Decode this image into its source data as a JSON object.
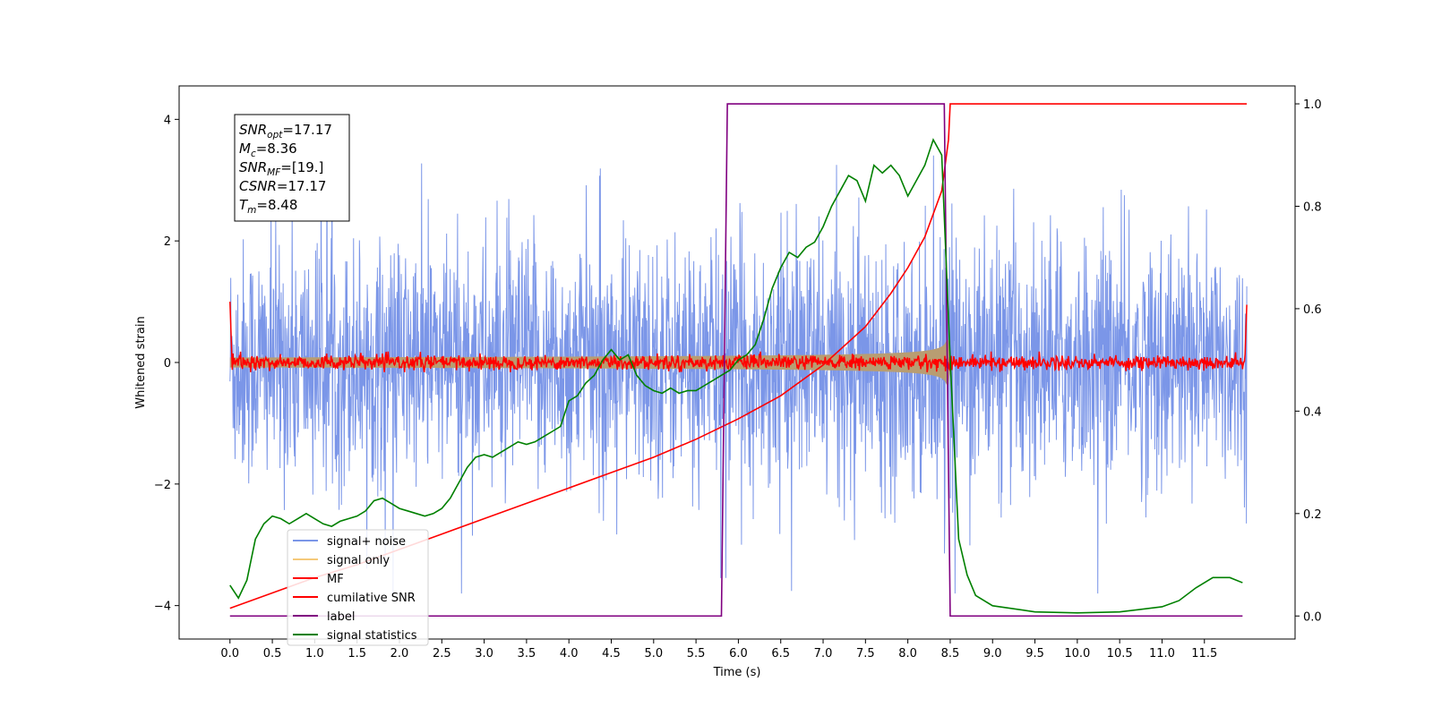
{
  "chart_data": {
    "type": "line",
    "xlabel": "Time (s)",
    "ylabel": "Whitened strain",
    "xlim": [
      -0.6,
      12.57
    ],
    "ylim": [
      -4.55,
      4.55
    ],
    "y2lim": [
      -0.045,
      1.035
    ],
    "x_ticks": [
      "0.0",
      "0.5",
      "1.0",
      "1.5",
      "2.0",
      "2.5",
      "3.0",
      "3.5",
      "4.0",
      "4.5",
      "5.0",
      "5.5",
      "6.0",
      "6.5",
      "7.0",
      "7.5",
      "8.0",
      "8.5",
      "9.0",
      "9.5",
      "10.0",
      "10.5",
      "11.0",
      "11.5"
    ],
    "y_ticks": [
      "4",
      "2",
      "0",
      "−2",
      "−4"
    ],
    "y2_ticks": [
      "1.0",
      "0.8",
      "0.6",
      "0.4",
      "0.2",
      "0.0"
    ],
    "legend_position": "lower-left",
    "info_box": {
      "lines": [
        {
          "sym": "SNR",
          "sub": "opt",
          "val": "=17.17"
        },
        {
          "sym": "M",
          "sub": "c",
          "val": "=8.36"
        },
        {
          "sym": "SNR",
          "sub": "MF",
          "val": "=[19.]"
        },
        {
          "sym": "CSNR",
          "sub": "",
          "val": "=17.17"
        },
        {
          "sym": "T",
          "sub": "m",
          "val": "=8.48"
        }
      ]
    },
    "series": [
      {
        "name": "signal+ noise",
        "color": "#7b96e8",
        "axis": "left",
        "kind": "noise",
        "amplitude": 1.0,
        "x_range": [
          0.0,
          12.0
        ]
      },
      {
        "name": "signal only",
        "color": "#f5c97a",
        "axis": "left",
        "kind": "chirp",
        "merger_time": 8.48,
        "peak_amplitude": 1.1
      },
      {
        "name": "MF",
        "color": "#ff0000",
        "axis": "left",
        "kind": "mf",
        "amplitude": 0.06,
        "edge_values": [
          1.0,
          0.95
        ]
      },
      {
        "name": "cumilative SNR",
        "color": "#ff0000",
        "axis": "right",
        "x": [
          0.0,
          0.5,
          1.0,
          1.5,
          2.0,
          2.5,
          3.0,
          3.5,
          4.0,
          4.5,
          5.0,
          5.5,
          6.0,
          6.5,
          7.0,
          7.5,
          7.8,
          8.0,
          8.2,
          8.4,
          8.48,
          8.5,
          12.0
        ],
        "y": [
          0.015,
          0.045,
          0.075,
          0.1,
          0.13,
          0.16,
          0.19,
          0.22,
          0.25,
          0.28,
          0.31,
          0.345,
          0.385,
          0.43,
          0.49,
          0.565,
          0.63,
          0.68,
          0.74,
          0.83,
          0.93,
          1.0,
          1.0
        ]
      },
      {
        "name": "label",
        "color": "#800080",
        "axis": "right",
        "x": [
          0.0,
          5.8,
          5.87,
          8.43,
          8.5,
          11.95
        ],
        "y": [
          0.0,
          0.0,
          1.0,
          1.0,
          0.0,
          0.0
        ]
      },
      {
        "name": "signal statistics",
        "color": "#008000",
        "axis": "right",
        "x": [
          0.0,
          0.1,
          0.2,
          0.3,
          0.4,
          0.5,
          0.6,
          0.7,
          0.8,
          0.9,
          1.0,
          1.1,
          1.2,
          1.3,
          1.4,
          1.5,
          1.6,
          1.7,
          1.8,
          1.9,
          2.0,
          2.1,
          2.2,
          2.3,
          2.4,
          2.5,
          2.6,
          2.7,
          2.8,
          2.9,
          3.0,
          3.1,
          3.2,
          3.3,
          3.4,
          3.5,
          3.6,
          3.7,
          3.8,
          3.9,
          4.0,
          4.1,
          4.2,
          4.3,
          4.4,
          4.5,
          4.6,
          4.7,
          4.8,
          4.9,
          5.0,
          5.1,
          5.2,
          5.3,
          5.4,
          5.5,
          5.6,
          5.7,
          5.8,
          5.9,
          6.0,
          6.1,
          6.2,
          6.3,
          6.4,
          6.5,
          6.6,
          6.7,
          6.8,
          6.9,
          7.0,
          7.1,
          7.2,
          7.3,
          7.4,
          7.5,
          7.6,
          7.7,
          7.8,
          7.9,
          8.0,
          8.1,
          8.2,
          8.3,
          8.4,
          8.5,
          8.6,
          8.7,
          8.8,
          9.0,
          9.5,
          10.0,
          10.5,
          11.0,
          11.2,
          11.4,
          11.6,
          11.8,
          11.95
        ],
        "y": [
          0.06,
          0.035,
          0.07,
          0.15,
          0.18,
          0.195,
          0.19,
          0.18,
          0.19,
          0.2,
          0.19,
          0.18,
          0.175,
          0.185,
          0.19,
          0.195,
          0.205,
          0.225,
          0.23,
          0.22,
          0.21,
          0.205,
          0.2,
          0.195,
          0.2,
          0.21,
          0.23,
          0.26,
          0.29,
          0.31,
          0.315,
          0.31,
          0.32,
          0.33,
          0.34,
          0.335,
          0.34,
          0.35,
          0.36,
          0.37,
          0.42,
          0.43,
          0.455,
          0.47,
          0.5,
          0.52,
          0.5,
          0.51,
          0.47,
          0.45,
          0.44,
          0.435,
          0.445,
          0.435,
          0.44,
          0.44,
          0.45,
          0.46,
          0.47,
          0.48,
          0.5,
          0.51,
          0.53,
          0.58,
          0.64,
          0.68,
          0.71,
          0.7,
          0.72,
          0.73,
          0.76,
          0.8,
          0.83,
          0.86,
          0.85,
          0.81,
          0.88,
          0.865,
          0.88,
          0.86,
          0.82,
          0.85,
          0.88,
          0.93,
          0.9,
          0.5,
          0.15,
          0.08,
          0.04,
          0.02,
          0.008,
          0.006,
          0.008,
          0.018,
          0.03,
          0.055,
          0.075,
          0.075,
          0.065
        ]
      }
    ]
  }
}
